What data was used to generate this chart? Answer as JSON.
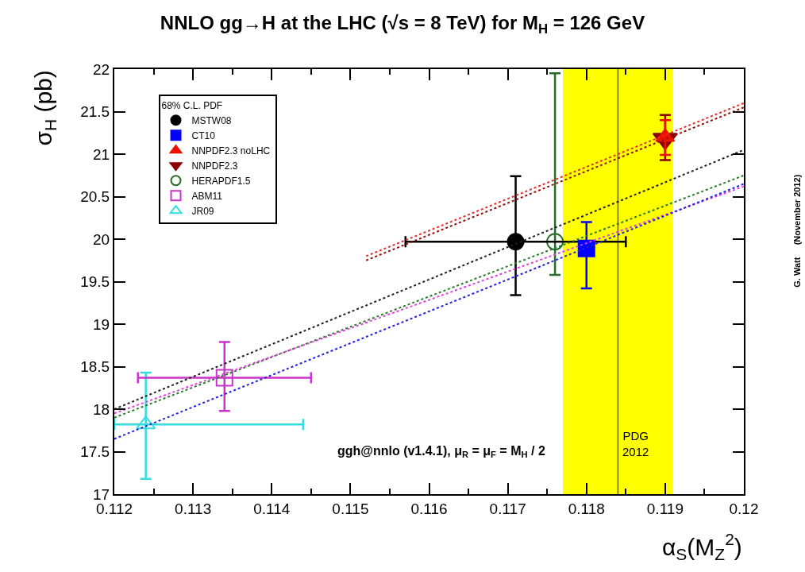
{
  "chart_data": {
    "type": "scatter",
    "title": "NNLO gg→H at the LHC (√s = 8 TeV) for M$_{H}$ = 126 GeV",
    "xlabel": "α$_{S}$(M$_{Z}$$^{2}$)",
    "ylabel": "σ$_{H}$ (pb)",
    "legend_title": "68% C.L. PDF",
    "legend": "top left",
    "grid": false,
    "xlim": [
      0.112,
      0.12
    ],
    "xticks": [
      0.112,
      0.113,
      0.114,
      0.115,
      0.116,
      0.117,
      0.118,
      0.119,
      0.12
    ],
    "ylim": [
      17,
      22
    ],
    "yticks": [
      17,
      17.5,
      18,
      18.5,
      19,
      19.5,
      20,
      20.5,
      21,
      21.5,
      22
    ],
    "series": [
      {
        "type": "line",
        "color": "#e03030",
        "line_style": "dotted",
        "x": [
          0.1152,
          0.12
        ],
        "values": [
          19.8,
          21.6
        ]
      },
      {
        "type": "line",
        "color": "#901010",
        "line_style": "dotted",
        "x": [
          0.1152,
          0.12
        ],
        "values": [
          19.75,
          21.55
        ]
      },
      {
        "type": "line",
        "color": "#202020",
        "line_style": "dotted",
        "x": [
          0.112,
          0.12
        ],
        "values": [
          18.0,
          21.05
        ]
      },
      {
        "type": "line",
        "color": "#2a7a2a",
        "line_style": "dotted",
        "x": [
          0.112,
          0.12
        ],
        "values": [
          17.9,
          20.75
        ]
      },
      {
        "type": "line",
        "color": "#e040e0",
        "line_style": "dotted",
        "x": [
          0.112,
          0.12
        ],
        "values": [
          17.95,
          20.62
        ]
      },
      {
        "type": "line",
        "color": "#2020e0",
        "line_style": "dotted",
        "x": [
          0.112,
          0.12
        ],
        "values": [
          17.65,
          20.65
        ]
      },
      {
        "name": "MSTW08",
        "color": "#000000",
        "marker": "circle",
        "x": [
          0.1171
        ],
        "values": [
          19.97
        ],
        "errors": [
          [
            19.34,
            20.74
          ]
        ],
        "xerrors": [
          [
            0.1157,
            0.1185
          ]
        ]
      },
      {
        "name": "CT10",
        "color": "#0000ff",
        "marker": "square",
        "x": [
          0.118
        ],
        "values": [
          19.89
        ],
        "errors": [
          [
            19.42,
            20.2
          ]
        ]
      },
      {
        "name": "NNPDF2.3 noLHC",
        "color": "#ee1100",
        "marker": "triangle",
        "x": [
          0.119
        ],
        "values": [
          21.2
        ],
        "errors": [
          [
            20.99,
            21.4
          ]
        ]
      },
      {
        "name": "NNPDF2.3",
        "color": "#8b0000",
        "marker": "triangle-down",
        "x": [
          0.119
        ],
        "values": [
          21.18
        ],
        "errors": [
          [
            20.93,
            21.46
          ]
        ]
      },
      {
        "name": "HERAPDF1.5",
        "color": "#2a6a2a",
        "marker": "circle-open",
        "x": [
          0.1176
        ],
        "values": [
          19.97
        ],
        "errors": [
          [
            19.58,
            21.95
          ]
        ]
      },
      {
        "name": "ABM11",
        "color": "#cc33cc",
        "marker": "square-open",
        "x": [
          0.1134
        ],
        "values": [
          18.37
        ],
        "errors": [
          [
            17.98,
            18.79
          ]
        ],
        "xerrors": [
          [
            0.1123,
            0.1145
          ]
        ]
      },
      {
        "name": "JR09",
        "color": "#33dddd",
        "marker": "triangle-open",
        "x": [
          0.1124
        ],
        "values": [
          17.82
        ],
        "errors": [
          [
            17.18,
            18.43
          ]
        ],
        "xerrors": [
          [
            0.112,
            0.1144
          ]
        ]
      }
    ],
    "bands": [
      {
        "axis": "x",
        "from": 0.1177,
        "to": 0.1191,
        "color": "#ffff00"
      }
    ],
    "ref_lines": [
      {
        "axis": "x",
        "value": 0.1184,
        "color": "#8a8a00",
        "label": "PDG 2012"
      }
    ],
    "annotations": [
      "ggh@nnlo (v1.4.1), μ$_{R}$ = μ$_{F}$ = M$_{H}$ / 2",
      "G. Watt     (November 2012)"
    ]
  }
}
